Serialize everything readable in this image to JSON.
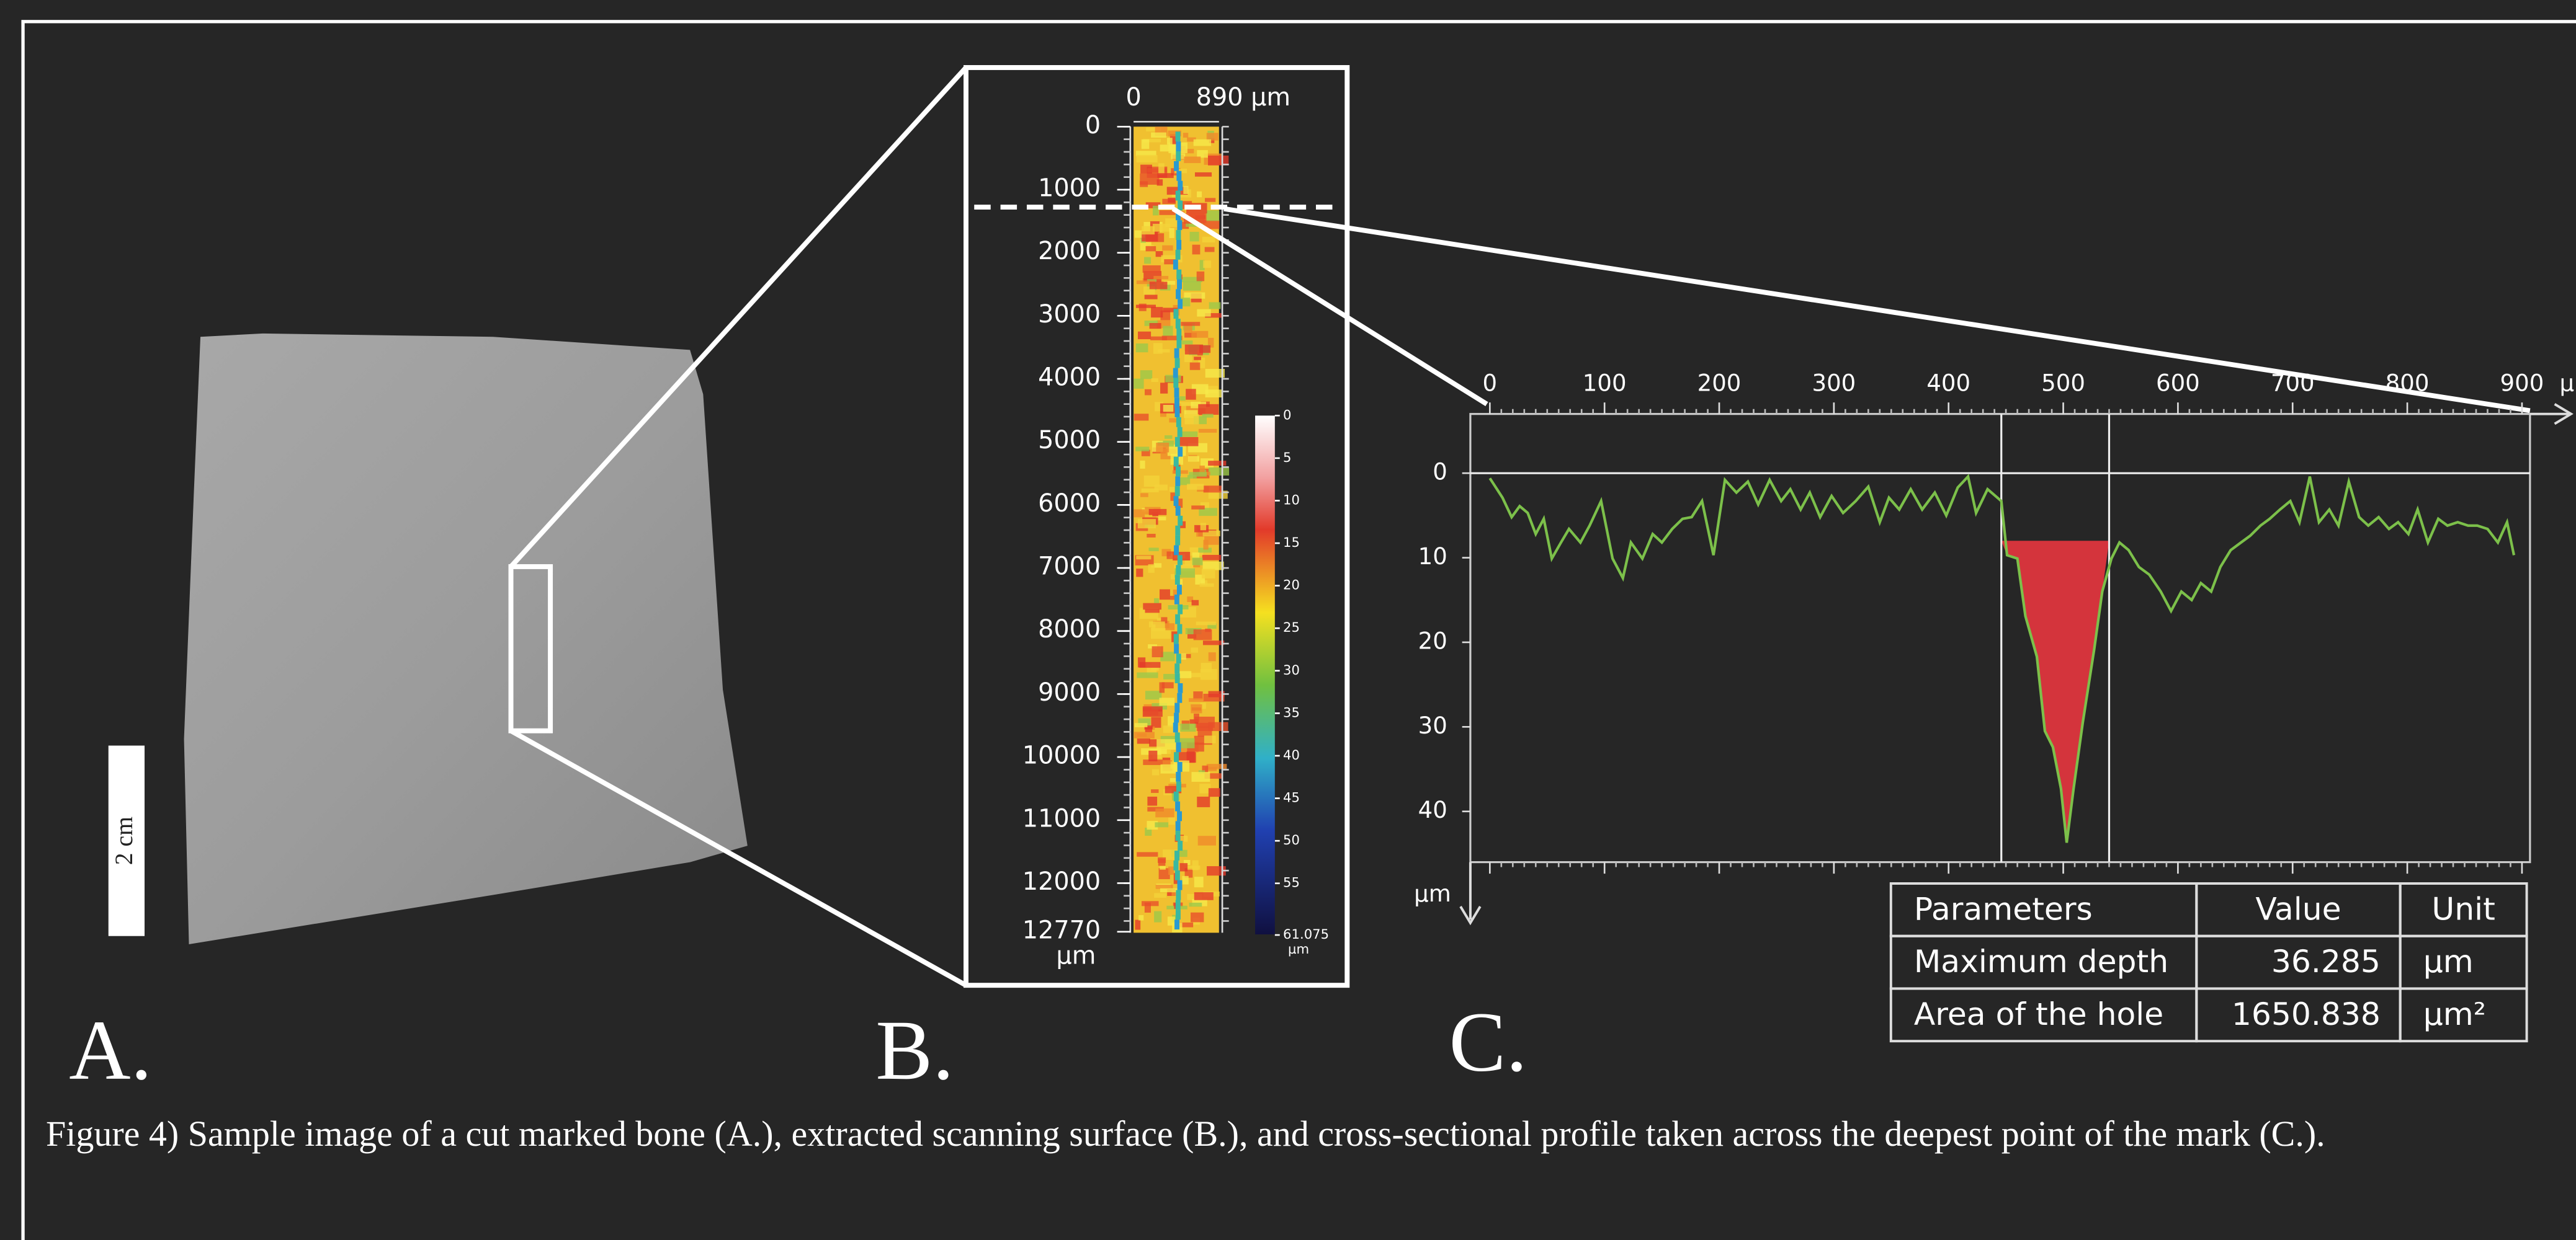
{
  "panel_labels": [
    "A.",
    "B.",
    "C."
  ],
  "caption": "Figure 4) Sample image of a cut marked bone (A.), extracted scanning surface (B.), and cross-sectional profile taken across the deepest point of the mark (C.).",
  "panel_a": {
    "scale_bar_label": "2 cm"
  },
  "panel_b": {
    "x_labels": [
      "0",
      "890 µm"
    ],
    "y_ticks": [
      0,
      1000,
      2000,
      3000,
      4000,
      5000,
      6000,
      7000,
      8000,
      9000,
      10000,
      11000,
      12000,
      12770
    ],
    "y_unit": "µm",
    "colorbar_ticks": [
      0,
      5,
      10,
      15,
      20,
      25,
      30,
      35,
      40,
      45,
      50,
      55,
      61.075
    ],
    "colorbar_unit": "µm"
  },
  "chart_data": {
    "type": "line",
    "x": [
      0,
      11,
      19,
      26,
      33,
      40,
      47,
      54,
      62,
      69,
      79,
      87,
      97,
      107,
      116,
      123,
      133,
      142,
      150,
      159,
      168,
      176,
      185,
      195,
      205,
      215,
      225,
      234,
      244,
      254,
      262,
      271,
      279,
      288,
      298,
      308,
      319,
      330,
      340,
      348,
      357,
      367,
      377,
      388,
      398,
      408,
      417,
      424,
      434,
      446,
      451,
      460,
      467,
      477,
      484,
      491,
      498,
      503,
      509,
      517,
      527,
      534,
      542,
      549,
      557,
      566,
      575,
      585,
      594,
      603,
      612,
      620,
      629,
      637,
      646,
      655,
      663,
      672,
      680,
      689,
      698,
      706,
      715,
      723,
      732,
      740,
      749,
      758,
      766,
      775,
      784,
      792,
      801,
      809,
      818,
      827,
      835,
      844,
      853,
      861,
      870,
      879,
      887,
      893
    ],
    "series": [
      {
        "color": "#7cc04a",
        "values": [
          0.6,
          2.9,
          5.2,
          3.9,
          4.7,
          7.2,
          5.4,
          10.1,
          8.2,
          6.6,
          8.2,
          6.2,
          3.3,
          10.1,
          12.4,
          8.2,
          10.1,
          7.2,
          8.2,
          6.6,
          5.4,
          5.2,
          3.3,
          9.7,
          0.8,
          2.3,
          1.0,
          3.7,
          0.8,
          3.3,
          1.9,
          4.3,
          2.3,
          5.2,
          2.7,
          4.7,
          3.3,
          1.6,
          5.8,
          2.9,
          4.3,
          1.9,
          4.3,
          2.3,
          5.0,
          1.7,
          0.4,
          4.7,
          1.9,
          3.3,
          9.7,
          10.1,
          16.9,
          21.7,
          30.5,
          32.4,
          37.3,
          43.7,
          37.3,
          29.5,
          20.8,
          14.0,
          10.1,
          8.2,
          9.1,
          11.1,
          12.0,
          14.0,
          16.3,
          14.0,
          15.0,
          13.0,
          14.0,
          11.1,
          9.1,
          8.2,
          7.4,
          6.2,
          5.4,
          4.3,
          3.3,
          5.8,
          0.4,
          5.8,
          4.3,
          6.2,
          1.0,
          5.2,
          6.2,
          5.2,
          6.6,
          5.8,
          7.2,
          4.3,
          8.2,
          5.4,
          6.2,
          5.8,
          6.2,
          6.2,
          6.6,
          8.2,
          5.8,
          9.7
        ]
      }
    ],
    "hole": {
      "x": [
        446,
        540
      ],
      "level": 8,
      "color": "#d4343c"
    },
    "xlim": [
      -17,
      907
    ],
    "ylim": [
      -7,
      46
    ],
    "xticks": [
      0,
      100,
      200,
      300,
      400,
      500,
      600,
      700,
      800,
      900
    ],
    "yticks": [
      0,
      10,
      20,
      30,
      40
    ],
    "y_inverted": true,
    "zero_line": true,
    "x_label": "µm",
    "y_label": "µm"
  },
  "table": {
    "header": [
      "Parameters",
      "Value",
      "Unit"
    ],
    "rows": [
      [
        "Maximum depth",
        "36.285",
        "µm"
      ],
      [
        "Area of the hole",
        "1650.838",
        "µm²"
      ]
    ]
  }
}
